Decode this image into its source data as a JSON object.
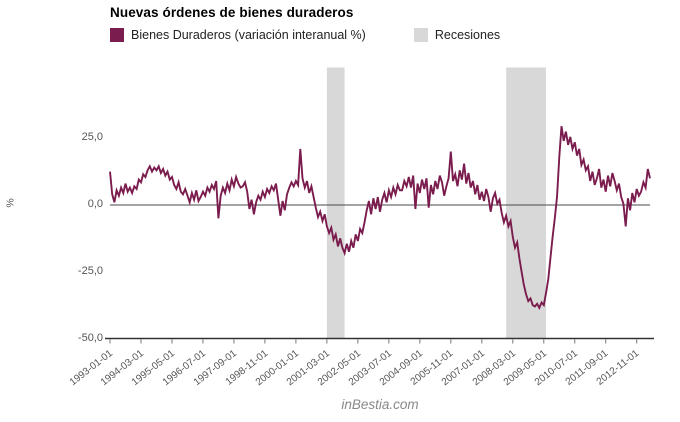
{
  "title": "Nuevas órdenes de bienes duraderos",
  "legend": [
    {
      "label": "Bienes Duraderos (variación interanual %)",
      "color": "#7a1c4d"
    },
    {
      "label": "Recesiones",
      "color": "#d8d8d8"
    }
  ],
  "watermark": "inBestia.com",
  "colors": {
    "series_line": "#7a1c4d",
    "recession_band": "#d8d8d8",
    "zero_line": "#4a4a4a",
    "axis_line": "#333333",
    "tick_text": "#555555"
  },
  "chart_data": {
    "type": "line",
    "title": "Nuevas órdenes de bienes duraderos",
    "ylabel": "%",
    "grid": false,
    "legend_position": "top",
    "ylim": [
      -50,
      50
    ],
    "y_ticks": {
      "values": [
        25,
        0,
        -25,
        -50
      ],
      "labels": [
        "25,0",
        "0,0",
        "-25,0",
        "-50,0"
      ]
    },
    "x_tick_labels": [
      "1993-01-01",
      "1994-03-01",
      "1995-05-01",
      "1996-07-01",
      "1997-09-01",
      "1998-11-01",
      "2000-01-01",
      "2001-03-01",
      "2002-05-01",
      "2003-07-01",
      "2004-09-01",
      "2005-11-01",
      "2007-01-01",
      "2008-03-01",
      "2009-05-01",
      "2010-07-01",
      "2011-09-01",
      "2012-11-01"
    ],
    "recessions": [
      {
        "from": "2001-03",
        "to": "2001-11"
      },
      {
        "from": "2007-12",
        "to": "2009-06"
      }
    ],
    "series": [
      {
        "name": "Bienes Duraderos (variación interanual %)",
        "color": "#7a1c4d",
        "start": "1993-01",
        "frequency": "monthly",
        "values": [
          12.5,
          4.0,
          1.0,
          5.5,
          3.5,
          6.5,
          4.5,
          8.0,
          5.0,
          6.5,
          4.5,
          7.0,
          6.0,
          9.5,
          8.5,
          11.5,
          10.5,
          13.0,
          14.5,
          12.5,
          14.0,
          13.0,
          14.5,
          12.0,
          13.5,
          11.0,
          12.5,
          9.5,
          10.5,
          7.5,
          6.0,
          8.5,
          5.0,
          4.0,
          6.0,
          3.5,
          1.0,
          4.5,
          2.0,
          5.5,
          1.5,
          3.0,
          5.0,
          3.5,
          6.5,
          5.0,
          7.5,
          6.0,
          9.0,
          -5.0,
          3.5,
          6.5,
          4.5,
          8.0,
          5.5,
          9.5,
          7.0,
          10.5,
          8.0,
          6.5,
          7.0,
          8.5,
          5.0,
          -1.5,
          2.0,
          -3.5,
          1.0,
          3.5,
          2.0,
          5.0,
          3.0,
          6.0,
          4.5,
          7.0,
          5.5,
          8.0,
          2.0,
          -4.0,
          1.5,
          -2.0,
          4.0,
          6.5,
          8.5,
          7.0,
          9.0,
          7.5,
          21.0,
          10.0,
          6.5,
          9.0,
          4.5,
          7.0,
          3.0,
          -1.0,
          -4.5,
          -2.5,
          -6.0,
          -3.5,
          -8.0,
          -10.5,
          -8.5,
          -13.0,
          -11.0,
          -15.5,
          -12.5,
          -16.0,
          -18.0,
          -14.5,
          -17.5,
          -13.5,
          -16.0,
          -11.0,
          -13.5,
          -9.0,
          -10.5,
          -6.5,
          -2.0,
          1.5,
          -3.5,
          2.5,
          -1.5,
          3.0,
          -2.5,
          2.0,
          4.5,
          1.0,
          5.5,
          3.0,
          6.5,
          4.0,
          7.5,
          5.5,
          5.5,
          9.0,
          7.0,
          10.5,
          6.5,
          11.0,
          -1.5,
          8.0,
          4.5,
          9.5,
          6.0,
          10.0,
          -1.0,
          7.5,
          4.0,
          9.0,
          6.0,
          11.0,
          8.5,
          3.5,
          7.0,
          10.0,
          20.0,
          9.0,
          11.5,
          7.0,
          13.0,
          9.5,
          15.5,
          8.0,
          12.0,
          6.5,
          9.0,
          4.0,
          7.5,
          2.0,
          5.0,
          1.5,
          6.0,
          3.0,
          -2.5,
          2.5,
          4.5,
          0.5,
          2.0,
          -3.0,
          -6.5,
          -4.0,
          -8.0,
          -6.0,
          -12.0,
          -16.0,
          -14.0,
          -20.0,
          -25.0,
          -30.0,
          -33.5,
          -36.0,
          -35.0,
          -37.5,
          -38.0,
          -37.0,
          -38.5,
          -36.5,
          -37.5,
          -33.0,
          -28.0,
          -20.0,
          -12.0,
          -5.0,
          3.0,
          18.0,
          29.5,
          24.0,
          27.5,
          22.5,
          25.5,
          21.0,
          23.5,
          18.5,
          21.0,
          15.0,
          17.0,
          13.0,
          14.5,
          9.0,
          12.5,
          7.5,
          10.0,
          13.5,
          6.5,
          9.5,
          5.0,
          11.0,
          7.0,
          12.0,
          9.0,
          5.5,
          8.0,
          3.0,
          0.5,
          -8.0,
          2.5,
          -2.0,
          4.5,
          1.0,
          6.0,
          3.5,
          5.0,
          8.5,
          6.5,
          13.5,
          10.0
        ]
      }
    ]
  }
}
